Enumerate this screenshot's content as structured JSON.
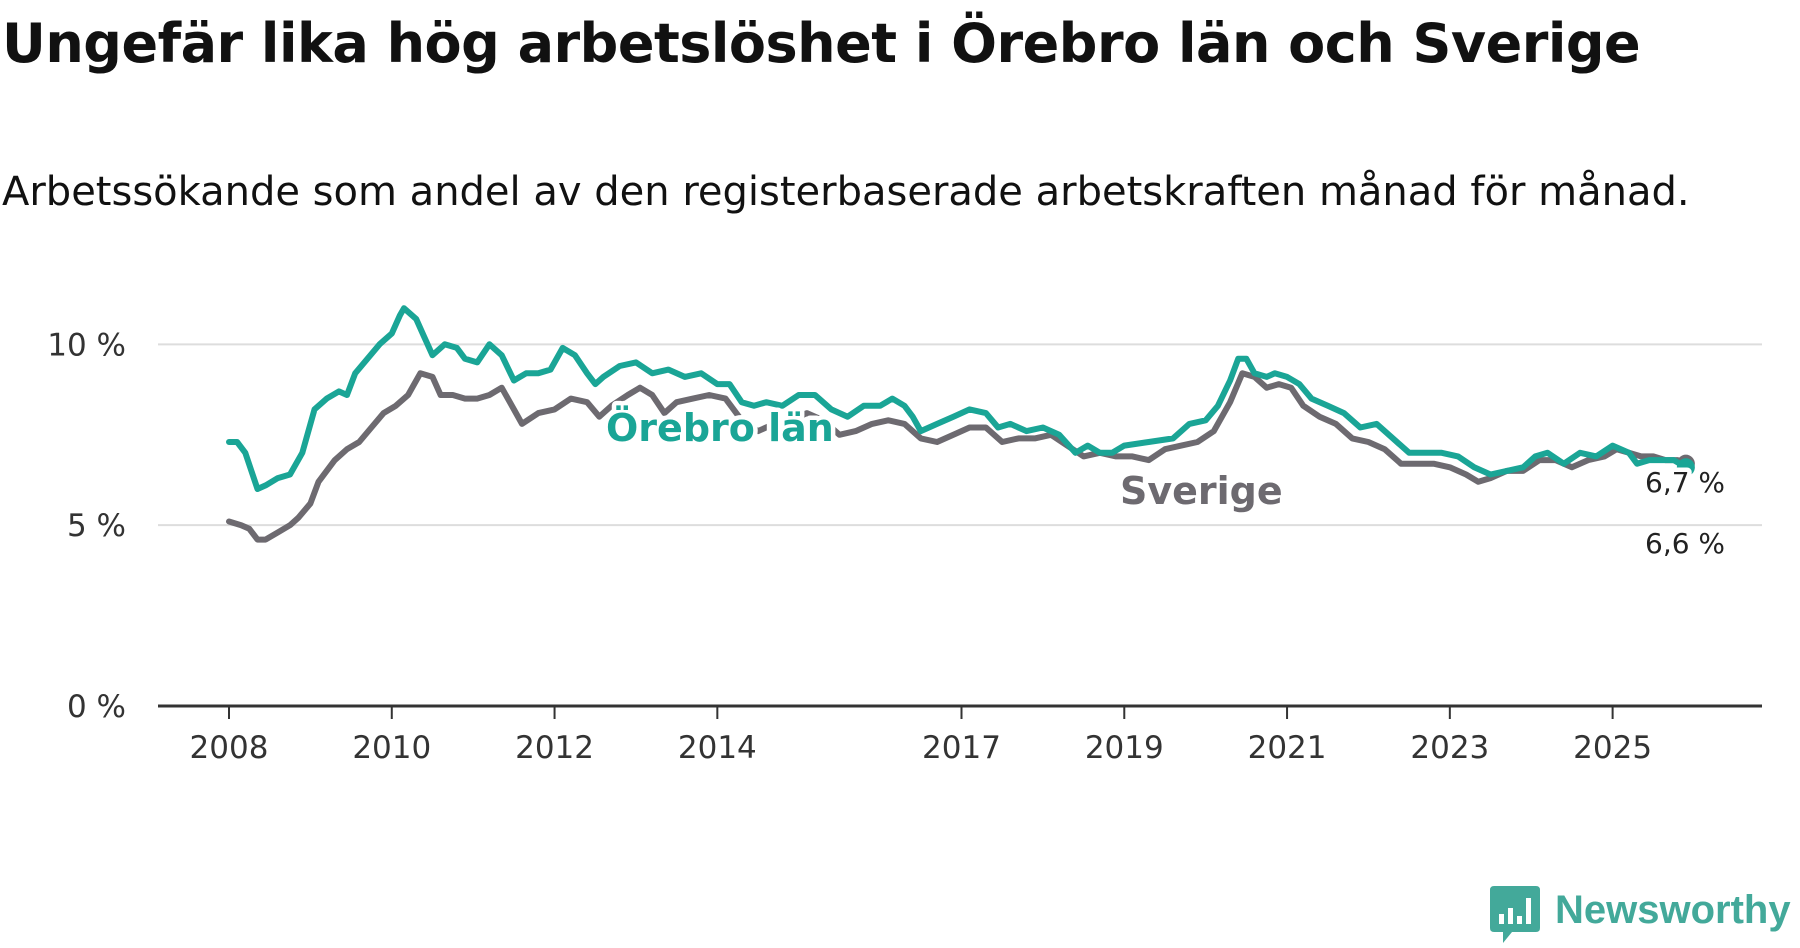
{
  "title": "Ungefär lika hög arbetslöshet i Örebro län och Sverige",
  "subtitle": "Arbetssökande som andel av den registerbaserade arbetskraften månad för månad.",
  "brand": {
    "name": "Newsworthy",
    "icon": "newsworthy-logo-icon",
    "color": "#43a99a"
  },
  "colors": {
    "orebro": "#1aa596",
    "sverige": "#6d6a70",
    "grid": "#dddddd",
    "axis": "#333333"
  },
  "chart_data": {
    "type": "line",
    "title": "Ungefär lika hög arbetslöshet i Örebro län och Sverige",
    "xlabel": "",
    "ylabel": "",
    "xlim": [
      2008.0,
      2026.0
    ],
    "ylim": [
      0,
      12
    ],
    "yticks": [
      {
        "value": 0,
        "label": "0 %"
      },
      {
        "value": 5,
        "label": "5 %"
      },
      {
        "value": 10,
        "label": "10 %"
      }
    ],
    "xticks": [
      {
        "value": 2008,
        "label": "2008"
      },
      {
        "value": 2010,
        "label": "2010"
      },
      {
        "value": 2012,
        "label": "2012"
      },
      {
        "value": 2014,
        "label": "2014"
      },
      {
        "value": 2017,
        "label": "2017"
      },
      {
        "value": 2019,
        "label": "2019"
      },
      {
        "value": 2021,
        "label": "2021"
      },
      {
        "value": 2023,
        "label": "2023"
      },
      {
        "value": 2025,
        "label": "2025"
      }
    ],
    "series": [
      {
        "name": "Örebro län",
        "label": "Örebro län",
        "end_label": "6,6 %",
        "color": "#1aa596",
        "points": [
          [
            2008.0,
            7.3
          ],
          [
            2008.1,
            7.3
          ],
          [
            2008.2,
            7.0
          ],
          [
            2008.35,
            6.0
          ],
          [
            2008.45,
            6.1
          ],
          [
            2008.6,
            6.3
          ],
          [
            2008.75,
            6.4
          ],
          [
            2008.9,
            7.0
          ],
          [
            2009.05,
            8.2
          ],
          [
            2009.2,
            8.5
          ],
          [
            2009.35,
            8.7
          ],
          [
            2009.45,
            8.6
          ],
          [
            2009.55,
            9.2
          ],
          [
            2009.7,
            9.6
          ],
          [
            2009.85,
            10.0
          ],
          [
            2010.0,
            10.3
          ],
          [
            2010.1,
            10.8
          ],
          [
            2010.15,
            11.0
          ],
          [
            2010.3,
            10.7
          ],
          [
            2010.4,
            10.2
          ],
          [
            2010.5,
            9.7
          ],
          [
            2010.65,
            10.0
          ],
          [
            2010.8,
            9.9
          ],
          [
            2010.9,
            9.6
          ],
          [
            2011.05,
            9.5
          ],
          [
            2011.2,
            10.0
          ],
          [
            2011.35,
            9.7
          ],
          [
            2011.5,
            9.0
          ],
          [
            2011.65,
            9.2
          ],
          [
            2011.8,
            9.2
          ],
          [
            2011.95,
            9.3
          ],
          [
            2012.1,
            9.9
          ],
          [
            2012.25,
            9.7
          ],
          [
            2012.4,
            9.2
          ],
          [
            2012.5,
            8.9
          ],
          [
            2012.6,
            9.1
          ],
          [
            2012.8,
            9.4
          ],
          [
            2013.0,
            9.5
          ],
          [
            2013.2,
            9.2
          ],
          [
            2013.4,
            9.3
          ],
          [
            2013.6,
            9.1
          ],
          [
            2013.8,
            9.2
          ],
          [
            2014.0,
            8.9
          ],
          [
            2014.15,
            8.9
          ],
          [
            2014.3,
            8.4
          ],
          [
            2014.45,
            8.3
          ],
          [
            2014.6,
            8.4
          ],
          [
            2014.8,
            8.3
          ],
          [
            2015.0,
            8.6
          ],
          [
            2015.2,
            8.6
          ],
          [
            2015.4,
            8.2
          ],
          [
            2015.6,
            8.0
          ],
          [
            2015.8,
            8.3
          ],
          [
            2016.0,
            8.3
          ],
          [
            2016.15,
            8.5
          ],
          [
            2016.3,
            8.3
          ],
          [
            2016.4,
            8.0
          ],
          [
            2016.5,
            7.6
          ],
          [
            2016.7,
            7.8
          ],
          [
            2016.9,
            8.0
          ],
          [
            2017.1,
            8.2
          ],
          [
            2017.3,
            8.1
          ],
          [
            2017.45,
            7.7
          ],
          [
            2017.6,
            7.8
          ],
          [
            2017.8,
            7.6
          ],
          [
            2018.0,
            7.7
          ],
          [
            2018.2,
            7.5
          ],
          [
            2018.4,
            7.0
          ],
          [
            2018.55,
            7.2
          ],
          [
            2018.7,
            7.0
          ],
          [
            2018.85,
            7.0
          ],
          [
            2019.0,
            7.2
          ],
          [
            2019.3,
            7.3
          ],
          [
            2019.6,
            7.4
          ],
          [
            2019.8,
            7.8
          ],
          [
            2020.0,
            7.9
          ],
          [
            2020.15,
            8.3
          ],
          [
            2020.3,
            9.0
          ],
          [
            2020.4,
            9.6
          ],
          [
            2020.5,
            9.6
          ],
          [
            2020.6,
            9.2
          ],
          [
            2020.75,
            9.1
          ],
          [
            2020.85,
            9.2
          ],
          [
            2021.0,
            9.1
          ],
          [
            2021.15,
            8.9
          ],
          [
            2021.3,
            8.5
          ],
          [
            2021.5,
            8.3
          ],
          [
            2021.7,
            8.1
          ],
          [
            2021.9,
            7.7
          ],
          [
            2022.1,
            7.8
          ],
          [
            2022.3,
            7.4
          ],
          [
            2022.5,
            7.0
          ],
          [
            2022.7,
            7.0
          ],
          [
            2022.9,
            7.0
          ],
          [
            2023.1,
            6.9
          ],
          [
            2023.3,
            6.6
          ],
          [
            2023.5,
            6.4
          ],
          [
            2023.7,
            6.5
          ],
          [
            2023.9,
            6.6
          ],
          [
            2024.05,
            6.9
          ],
          [
            2024.2,
            7.0
          ],
          [
            2024.4,
            6.7
          ],
          [
            2024.6,
            7.0
          ],
          [
            2024.8,
            6.9
          ],
          [
            2025.0,
            7.2
          ],
          [
            2025.2,
            7.0
          ],
          [
            2025.3,
            6.7
          ],
          [
            2025.45,
            6.8
          ],
          [
            2025.6,
            6.8
          ],
          [
            2025.75,
            6.8
          ],
          [
            2025.9,
            6.6
          ]
        ]
      },
      {
        "name": "Sverige",
        "label": "Sverige",
        "end_label": "6,7 %",
        "color": "#6d6a70",
        "points": [
          [
            2008.0,
            5.1
          ],
          [
            2008.15,
            5.0
          ],
          [
            2008.25,
            4.9
          ],
          [
            2008.35,
            4.6
          ],
          [
            2008.45,
            4.6
          ],
          [
            2008.6,
            4.8
          ],
          [
            2008.75,
            5.0
          ],
          [
            2008.85,
            5.2
          ],
          [
            2009.0,
            5.6
          ],
          [
            2009.1,
            6.2
          ],
          [
            2009.3,
            6.8
          ],
          [
            2009.45,
            7.1
          ],
          [
            2009.6,
            7.3
          ],
          [
            2009.75,
            7.7
          ],
          [
            2009.9,
            8.1
          ],
          [
            2010.05,
            8.3
          ],
          [
            2010.2,
            8.6
          ],
          [
            2010.35,
            9.2
          ],
          [
            2010.5,
            9.1
          ],
          [
            2010.6,
            8.6
          ],
          [
            2010.75,
            8.6
          ],
          [
            2010.9,
            8.5
          ],
          [
            2011.05,
            8.5
          ],
          [
            2011.2,
            8.6
          ],
          [
            2011.35,
            8.8
          ],
          [
            2011.5,
            8.2
          ],
          [
            2011.6,
            7.8
          ],
          [
            2011.8,
            8.1
          ],
          [
            2012.0,
            8.2
          ],
          [
            2012.2,
            8.5
          ],
          [
            2012.4,
            8.4
          ],
          [
            2012.55,
            8.0
          ],
          [
            2012.7,
            8.3
          ],
          [
            2012.9,
            8.6
          ],
          [
            2013.05,
            8.8
          ],
          [
            2013.2,
            8.6
          ],
          [
            2013.35,
            8.1
          ],
          [
            2013.5,
            8.4
          ],
          [
            2013.7,
            8.5
          ],
          [
            2013.9,
            8.6
          ],
          [
            2014.1,
            8.5
          ],
          [
            2014.3,
            7.9
          ],
          [
            2014.5,
            7.6
          ],
          [
            2014.7,
            7.8
          ],
          [
            2014.9,
            7.9
          ],
          [
            2015.1,
            8.1
          ],
          [
            2015.3,
            7.9
          ],
          [
            2015.5,
            7.5
          ],
          [
            2015.7,
            7.6
          ],
          [
            2015.9,
            7.8
          ],
          [
            2016.1,
            7.9
          ],
          [
            2016.3,
            7.8
          ],
          [
            2016.5,
            7.4
          ],
          [
            2016.7,
            7.3
          ],
          [
            2016.9,
            7.5
          ],
          [
            2017.1,
            7.7
          ],
          [
            2017.3,
            7.7
          ],
          [
            2017.5,
            7.3
          ],
          [
            2017.7,
            7.4
          ],
          [
            2017.9,
            7.4
          ],
          [
            2018.1,
            7.5
          ],
          [
            2018.3,
            7.2
          ],
          [
            2018.5,
            6.9
          ],
          [
            2018.7,
            7.0
          ],
          [
            2018.9,
            6.9
          ],
          [
            2019.1,
            6.9
          ],
          [
            2019.3,
            6.8
          ],
          [
            2019.5,
            7.1
          ],
          [
            2019.7,
            7.2
          ],
          [
            2019.9,
            7.3
          ],
          [
            2020.1,
            7.6
          ],
          [
            2020.3,
            8.4
          ],
          [
            2020.45,
            9.2
          ],
          [
            2020.6,
            9.1
          ],
          [
            2020.75,
            8.8
          ],
          [
            2020.9,
            8.9
          ],
          [
            2021.05,
            8.8
          ],
          [
            2021.2,
            8.3
          ],
          [
            2021.4,
            8.0
          ],
          [
            2021.6,
            7.8
          ],
          [
            2021.8,
            7.4
          ],
          [
            2022.0,
            7.3
          ],
          [
            2022.2,
            7.1
          ],
          [
            2022.4,
            6.7
          ],
          [
            2022.6,
            6.7
          ],
          [
            2022.8,
            6.7
          ],
          [
            2023.0,
            6.6
          ],
          [
            2023.2,
            6.4
          ],
          [
            2023.35,
            6.2
          ],
          [
            2023.5,
            6.3
          ],
          [
            2023.7,
            6.5
          ],
          [
            2023.9,
            6.5
          ],
          [
            2024.1,
            6.8
          ],
          [
            2024.3,
            6.8
          ],
          [
            2024.5,
            6.6
          ],
          [
            2024.7,
            6.8
          ],
          [
            2024.9,
            6.9
          ],
          [
            2025.05,
            7.1
          ],
          [
            2025.2,
            7.0
          ],
          [
            2025.35,
            6.9
          ],
          [
            2025.5,
            6.9
          ],
          [
            2025.65,
            6.8
          ],
          [
            2025.8,
            6.8
          ],
          [
            2025.9,
            6.7
          ]
        ]
      }
    ]
  }
}
